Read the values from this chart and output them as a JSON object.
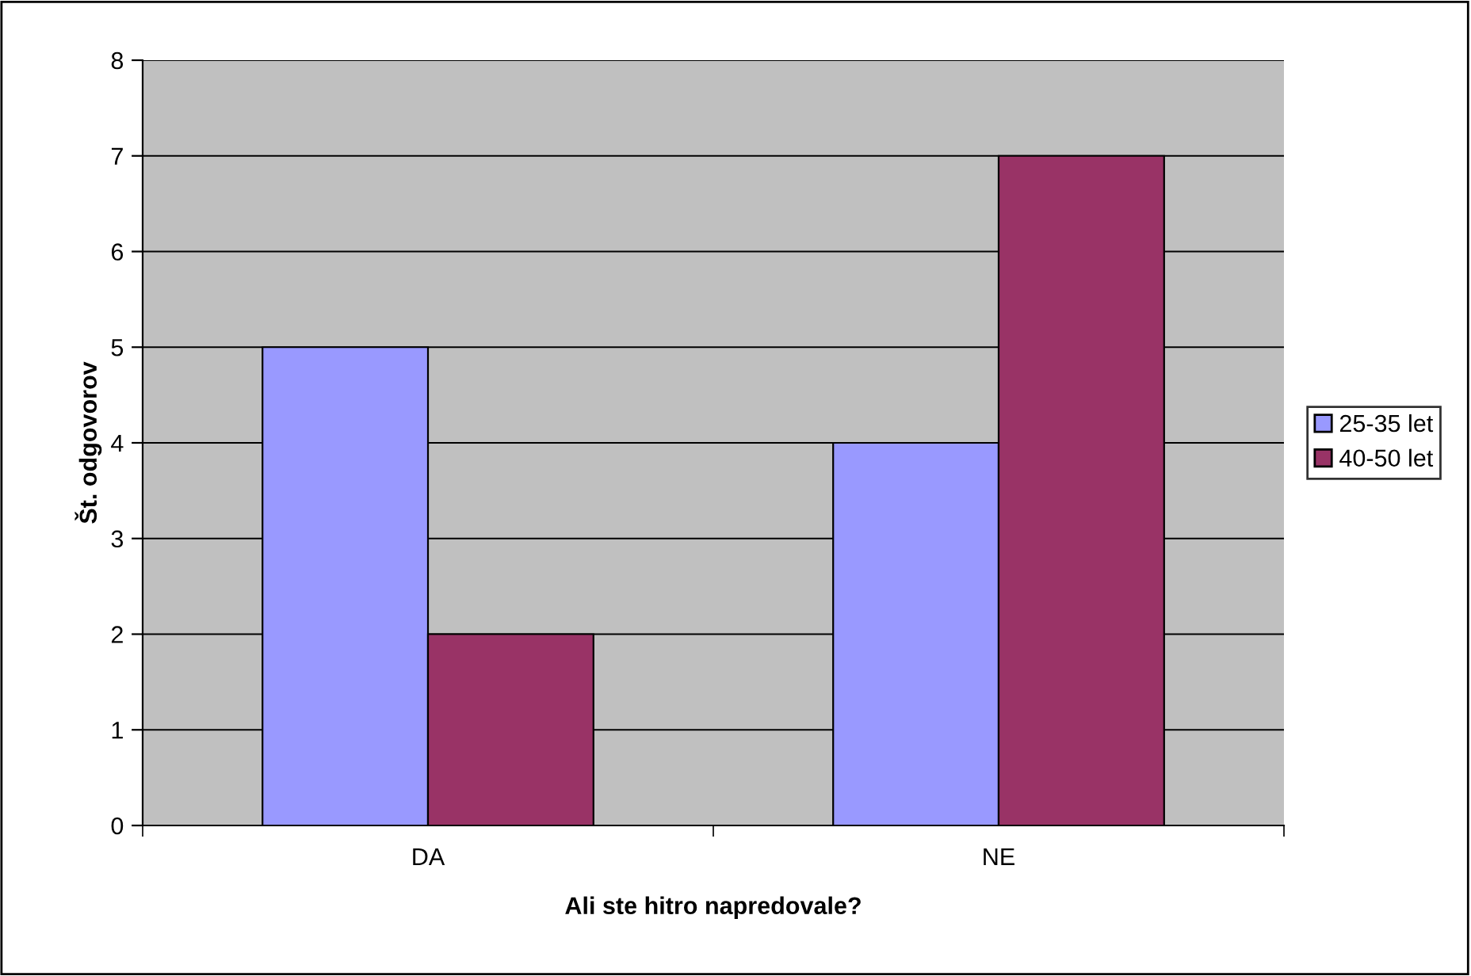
{
  "chart_data": {
    "type": "bar",
    "xlabel": "Ali ste hitro napredovale?",
    "ylabel": "Št. odgovorov",
    "categories": [
      "DA",
      "NE"
    ],
    "series": [
      {
        "name": "25-35 let",
        "color": "#9999ff",
        "values": [
          5,
          4
        ]
      },
      {
        "name": "40-50 let",
        "color": "#993366",
        "values": [
          2,
          7
        ]
      }
    ],
    "ylim": [
      0,
      8
    ],
    "yticks": [
      0,
      1,
      2,
      3,
      4,
      5,
      6,
      7,
      8
    ],
    "grid": "y",
    "legend": "right"
  }
}
